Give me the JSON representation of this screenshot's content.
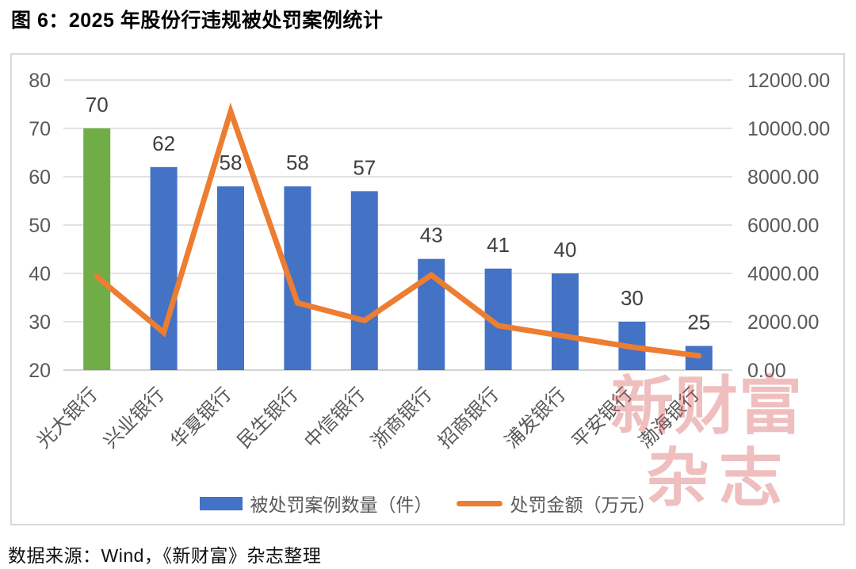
{
  "title": "图 6：2025 年股份行违规被处罚案例统计",
  "source": "数据来源：Wind，《新财富》杂志整理",
  "watermark": {
    "line1": "新财富",
    "line2": "杂志"
  },
  "legend": [
    {
      "type": "bar",
      "label": "被处罚案例数量（件）",
      "color": "#4472C4"
    },
    {
      "type": "line",
      "label": "处罚金额（万元）",
      "color": "#ED7D31"
    }
  ],
  "colors": {
    "bar_default": "#4472C4",
    "bar_highlight": "#70AD47",
    "line": "#ED7D31",
    "grid": "#D9D9D9",
    "axis_text": "#595959",
    "data_label": "#404040"
  },
  "chart_data": {
    "type": "bar",
    "subtype": "combo bar+line, dual axis",
    "title": "2025 年股份行违规被处罚案例统计",
    "categories": [
      "光大银行",
      "兴业银行",
      "华夏银行",
      "民生银行",
      "中信银行",
      "浙商银行",
      "招商银行",
      "浦发银行",
      "平安银行",
      "渤海银行"
    ],
    "series": [
      {
        "name": "被处罚案例数量（件）",
        "render": "bar",
        "axis": "left",
        "values": [
          70,
          62,
          58,
          58,
          57,
          43,
          41,
          40,
          30,
          25
        ],
        "colors": [
          "#70AD47",
          "#4472C4",
          "#4472C4",
          "#4472C4",
          "#4472C4",
          "#4472C4",
          "#4472C4",
          "#4472C4",
          "#4472C4",
          "#4472C4"
        ],
        "data_labels": true
      },
      {
        "name": "处罚金额（万元）",
        "render": "line",
        "axis": "right",
        "color": "#ED7D31",
        "values": [
          3870,
          1550,
          10700,
          2780,
          2050,
          3930,
          1840,
          1400,
          950,
          590
        ],
        "note": "values estimated from gridlines; no data labels shown"
      }
    ],
    "left_axis": {
      "min": 20,
      "max": 80,
      "ticks": [
        20,
        30,
        40,
        50,
        60,
        70,
        80
      ]
    },
    "right_axis": {
      "min": 0,
      "max": 12000,
      "tick_labels": [
        "0.00",
        "2000.00",
        "4000.00",
        "6000.00",
        "8000.00",
        "10000.00",
        "12000.00"
      ]
    },
    "grid": "horizontal only",
    "legend_position": "bottom",
    "category_label_rotation": -45
  }
}
